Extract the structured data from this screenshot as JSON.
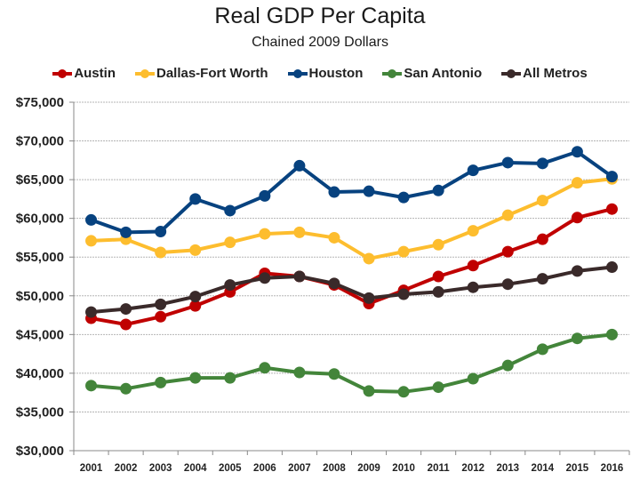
{
  "chart_data": {
    "type": "line",
    "title": "Real GDP Per Capita",
    "subtitle": "Chained 2009 Dollars",
    "xlabel": "",
    "ylabel": "",
    "ylim": [
      30000,
      75000
    ],
    "ytick_step": 5000,
    "ytick_labels": [
      "$30,000",
      "$35,000",
      "$40,000",
      "$45,000",
      "$50,000",
      "$55,000",
      "$60,000",
      "$65,000",
      "$70,000",
      "$75,000"
    ],
    "grid": true,
    "legend_position": "top",
    "categories": [
      "2001",
      "2002",
      "2003",
      "2004",
      "2005",
      "2006",
      "2007",
      "2008",
      "2009",
      "2010",
      "2011",
      "2012",
      "2013",
      "2014",
      "2015",
      "2016"
    ],
    "series": [
      {
        "name": "Austin",
        "color": "#C00000",
        "values": [
          47100,
          46300,
          47300,
          48700,
          50500,
          52900,
          52500,
          51400,
          49000,
          50700,
          52500,
          53900,
          55700,
          57300,
          60100,
          61200
        ]
      },
      {
        "name": "Dallas-Fort Worth",
        "color": "#FDBD2E",
        "values": [
          57100,
          57300,
          55600,
          55900,
          56900,
          58000,
          58200,
          57500,
          54800,
          55700,
          56600,
          58400,
          60400,
          62300,
          64600,
          65100
        ]
      },
      {
        "name": "Houston",
        "color": "#07427F",
        "values": [
          59800,
          58200,
          58300,
          62500,
          61000,
          62900,
          66800,
          63400,
          63500,
          62700,
          63600,
          66200,
          67200,
          67100,
          68600,
          65400
        ]
      },
      {
        "name": "San Antonio",
        "color": "#43853A",
        "values": [
          38400,
          38000,
          38800,
          39400,
          39400,
          40700,
          40100,
          39900,
          37700,
          37600,
          38200,
          39300,
          41000,
          43100,
          44500,
          45000
        ]
      },
      {
        "name": "All Metros",
        "color": "#3A2A2A",
        "values": [
          47900,
          48300,
          48900,
          49900,
          51400,
          52300,
          52500,
          51600,
          49700,
          50200,
          50500,
          51100,
          51500,
          52200,
          53200,
          53700
        ]
      }
    ]
  }
}
